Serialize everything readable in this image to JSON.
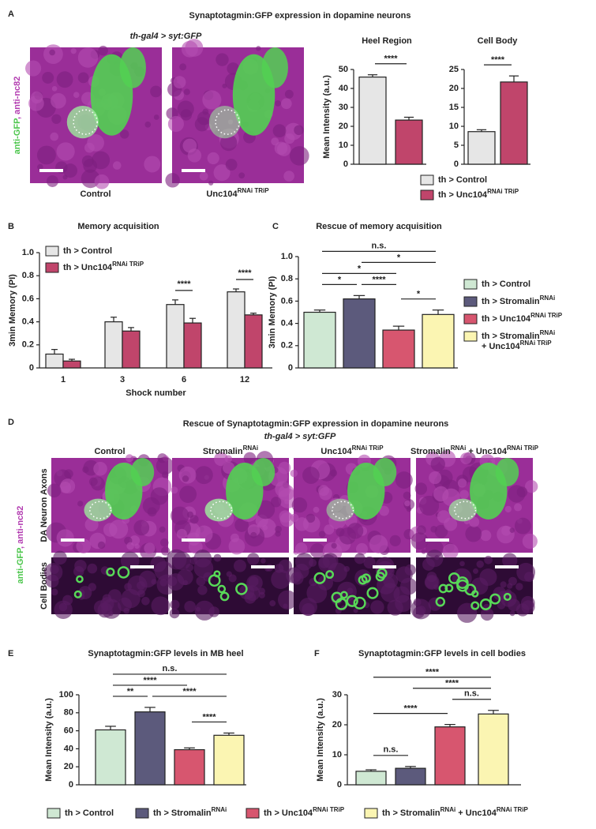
{
  "panel_labels": [
    "A",
    "B",
    "C",
    "D",
    "E",
    "F"
  ],
  "panel_a": {
    "title": "Synaptotagmin:GFP expression in dopamine neurons",
    "genotype": "th-gal4 > syt:GFP",
    "stain_label": [
      "anti-GFP",
      ", anti-nc82"
    ],
    "image_captions": [
      [
        "Control"
      ],
      [
        "Unc104",
        "RNAi TRiP"
      ]
    ]
  },
  "panel_d": {
    "title": "Rescue of Synaptotagmin:GFP expression in dopamine neurons",
    "genotype": "th-gal4 > syt:GFP",
    "stain_label": [
      "anti-GFP",
      ", anti-nc82"
    ],
    "column_labels": [
      [
        "Control"
      ],
      [
        "Stromalin",
        "RNAi"
      ],
      [
        "Unc104",
        "RNAi TRiP"
      ],
      [
        "Stromalin",
        "RNAi",
        " + Unc104",
        "RNAi TRiP"
      ]
    ],
    "row_labels": [
      "DA Neuron Axons",
      "Cell Bodies"
    ]
  },
  "chart_data": [
    {
      "type": "bar",
      "title": "Heel Region",
      "y_label": "Mean Intensity (a.u.)",
      "categories": [
        null
      ],
      "series": [
        {
          "name": [
            "th > Control"
          ],
          "color": "#e6e6e6",
          "values": [
            46
          ],
          "errors": [
            1.2
          ]
        },
        {
          "name": [
            "th > Unc104",
            "RNAi TRiP"
          ],
          "color": "#c0456b",
          "values": [
            23.3
          ],
          "errors": [
            1.5
          ]
        }
      ],
      "ylim": [
        0,
        50
      ],
      "yticks": [
        0,
        10,
        20,
        30,
        40,
        50
      ],
      "brackets": [
        {
          "between": [
            0,
            1
          ],
          "label": "****"
        }
      ]
    },
    {
      "type": "bar",
      "title": "Cell Body",
      "categories": [
        null
      ],
      "series": [
        {
          "color": "#e6e6e6",
          "values": [
            8.6
          ],
          "errors": [
            0.5
          ]
        },
        {
          "color": "#c0456b",
          "values": [
            21.7
          ],
          "errors": [
            1.6
          ]
        }
      ],
      "ylim": [
        0,
        25
      ],
      "yticks": [
        0,
        5,
        10,
        15,
        20,
        25
      ],
      "brackets": [
        {
          "between": [
            0,
            1
          ],
          "label": "****"
        }
      ]
    },
    {
      "type": "bar",
      "title": "Memory acquisition",
      "y_label": "3min Memory (PI)",
      "x_label": "Shock number",
      "categories": [
        "1",
        "3",
        "6",
        "12"
      ],
      "series": [
        {
          "name": [
            "th > Control"
          ],
          "color": "#e6e6e6",
          "values": [
            0.12,
            0.4,
            0.55,
            0.66
          ],
          "errors": [
            0.04,
            0.04,
            0.04,
            0.025
          ]
        },
        {
          "name": [
            "th > Unc104",
            "RNAi TRiP"
          ],
          "color": "#c0456b",
          "values": [
            0.06,
            0.32,
            0.39,
            0.46
          ],
          "errors": [
            0.015,
            0.03,
            0.04,
            0.015
          ]
        }
      ],
      "ylim": [
        0,
        1
      ],
      "yticks": [
        0,
        0.2,
        0.4,
        0.6,
        0.8,
        {
          "value": 1,
          "label": "1.0"
        }
      ],
      "significance": [
        null,
        null,
        "****",
        "****"
      ]
    },
    {
      "type": "bar",
      "title": "Rescue of memory acquisition",
      "y_label": "3min Memory (PI)",
      "categories": [
        null
      ],
      "series": [
        {
          "name": [
            "th > Control"
          ],
          "color": "#cfe8d3",
          "values": [
            0.5
          ],
          "errors": [
            0.02
          ]
        },
        {
          "name": [
            "th > Stromalin",
            "RNAi"
          ],
          "color": "#5c5a7c",
          "values": [
            0.62
          ],
          "errors": [
            0.03
          ]
        },
        {
          "name": [
            "th > Unc104",
            "RNAi TRiP"
          ],
          "color": "#d7566f",
          "values": [
            0.34
          ],
          "errors": [
            0.035
          ]
        },
        {
          "name": [
            "th > Stromalin",
            "RNAi",
            "+ Unc104",
            "RNAi TRiP"
          ],
          "color": "#fbf5b2",
          "values": [
            0.48
          ],
          "errors": [
            0.04
          ]
        }
      ],
      "ylim": [
        0,
        1
      ],
      "yticks": [
        0,
        0.2,
        0.4,
        0.6,
        0.8,
        {
          "value": 1,
          "label": "1.0"
        }
      ],
      "brackets": [
        {
          "between": [
            0,
            1
          ],
          "label": "*"
        },
        {
          "between": [
            1,
            2
          ],
          "label": "****"
        },
        {
          "between": [
            2,
            3
          ],
          "label": "*"
        },
        {
          "between": [
            0,
            2
          ],
          "label": "*"
        },
        {
          "between": [
            1,
            3
          ],
          "label": "*"
        },
        {
          "between": [
            0,
            3
          ],
          "label": "n.s."
        }
      ]
    },
    {
      "type": "bar",
      "title": "Synaptotagmin:GFP levels in MB heel",
      "y_label": "Mean Intensity (a.u.)",
      "categories": [
        null
      ],
      "series": [
        {
          "name": [
            "th > Control"
          ],
          "color": "#cfe8d3",
          "values": [
            61
          ],
          "errors": [
            4
          ]
        },
        {
          "name": [
            "th > Stromalin",
            "RNAi"
          ],
          "color": "#5c5a7c",
          "values": [
            81
          ],
          "errors": [
            5
          ]
        },
        {
          "name": [
            "th > Unc104",
            "RNAi TRiP"
          ],
          "color": "#d7566f",
          "values": [
            39
          ],
          "errors": [
            2
          ]
        },
        {
          "name": [
            "th > Stromalin",
            "RNAi",
            " + Unc104",
            "RNAi TRiP"
          ],
          "color": "#fbf5b2",
          "values": [
            55
          ],
          "errors": [
            2.5
          ]
        }
      ],
      "ylim": [
        0,
        100
      ],
      "yticks": [
        0,
        20,
        40,
        60,
        80,
        100
      ],
      "brackets": [
        {
          "between": [
            0,
            1
          ],
          "label": "**"
        },
        {
          "between": [
            2,
            3
          ],
          "label": "****"
        },
        {
          "between": [
            1,
            3
          ],
          "label": "****"
        },
        {
          "between": [
            0,
            2
          ],
          "label": "****"
        },
        {
          "between": [
            0,
            3
          ],
          "label": "n.s."
        }
      ]
    },
    {
      "type": "bar",
      "title": "Synaptotagmin:GFP levels in cell bodies",
      "y_label": "Mean Intensity (a.u.)",
      "categories": [
        null
      ],
      "series": [
        {
          "color": "#cfe8d3",
          "values": [
            4.5
          ],
          "errors": [
            0.5
          ]
        },
        {
          "color": "#5c5a7c",
          "values": [
            5.5
          ],
          "errors": [
            0.6
          ]
        },
        {
          "color": "#d7566f",
          "values": [
            19.3
          ],
          "errors": [
            0.8
          ]
        },
        {
          "color": "#fbf5b2",
          "values": [
            23.6
          ],
          "errors": [
            1.2
          ]
        }
      ],
      "ylim": [
        0,
        30
      ],
      "yticks": [
        0,
        10,
        20,
        30
      ],
      "brackets": [
        {
          "between": [
            0,
            1
          ],
          "label": "n.s."
        },
        {
          "between": [
            2,
            3
          ],
          "label": "n.s."
        },
        {
          "between": [
            0,
            2
          ],
          "label": "****"
        },
        {
          "between": [
            1,
            3
          ],
          "label": "****"
        },
        {
          "between": [
            0,
            3
          ],
          "label": "****"
        }
      ]
    }
  ]
}
